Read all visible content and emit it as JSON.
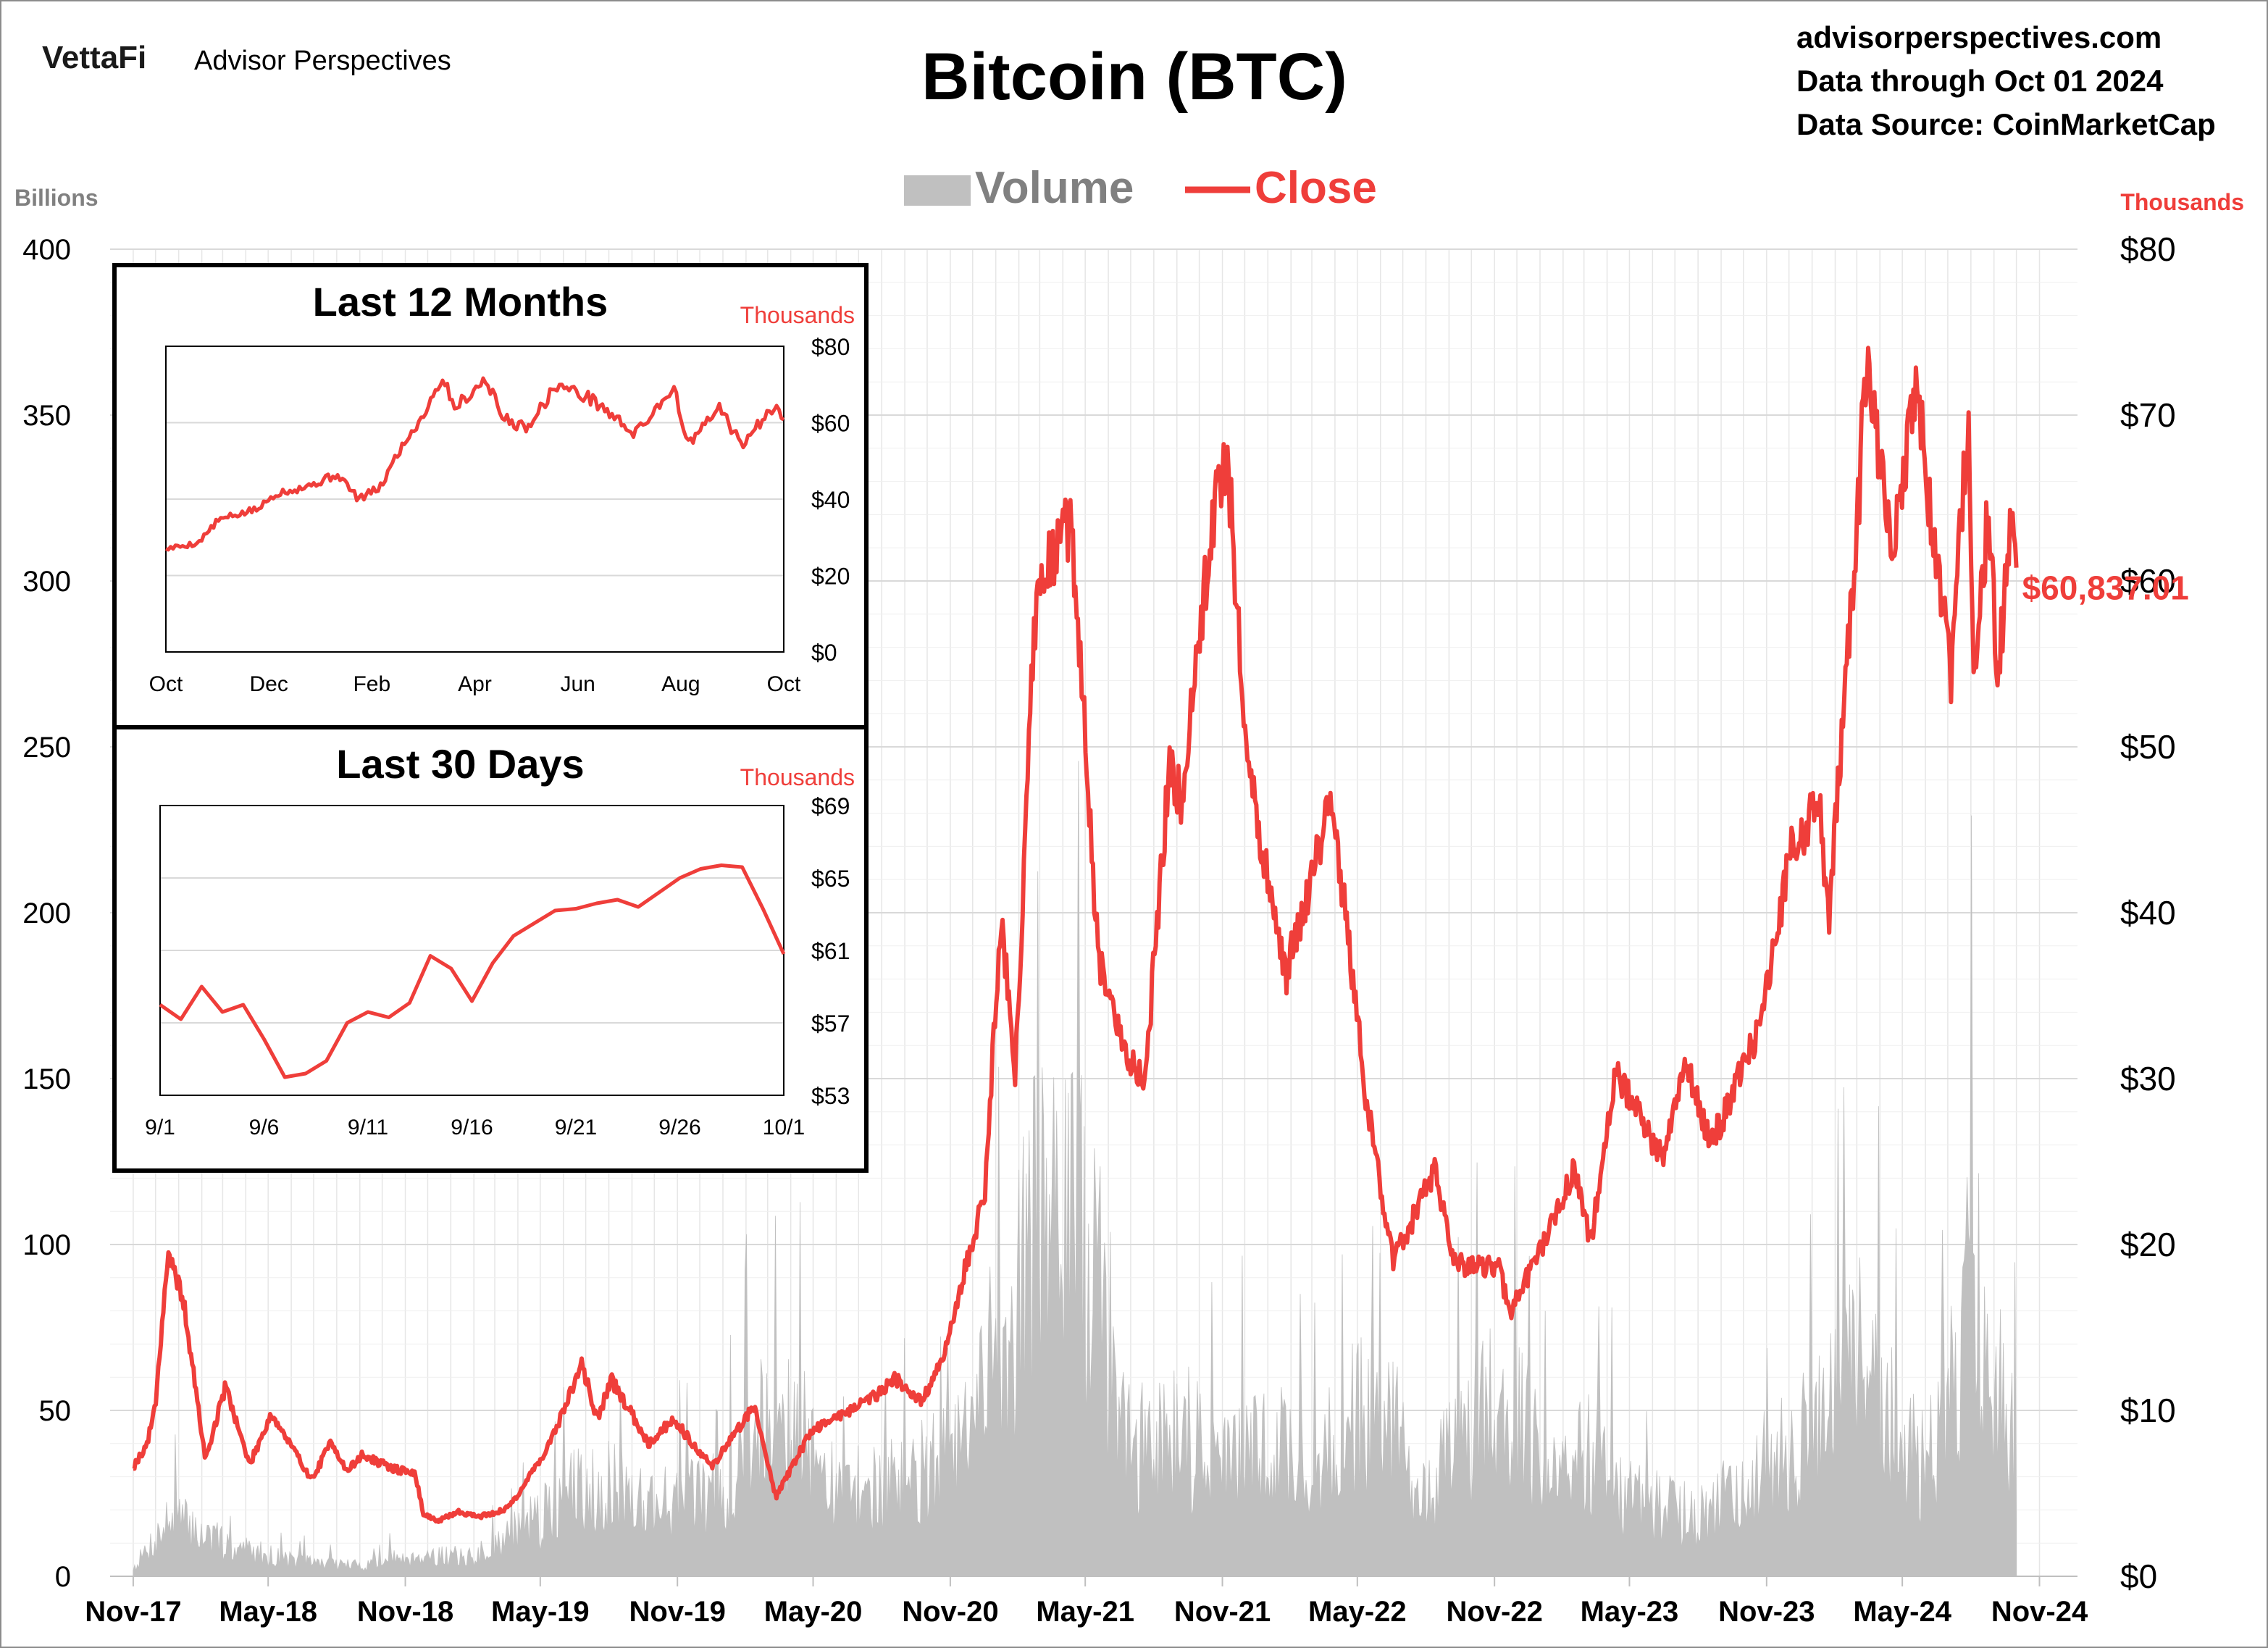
{
  "header": {
    "brand_logo": "VettaFi",
    "brand_name": "Advisor Perspectives",
    "title": "Bitcoin (BTC)",
    "source_lines": [
      "advisorperspectives.com",
      "Data through Oct 01 2024",
      "Data Source: CoinMarketCap"
    ]
  },
  "colors": {
    "close_line": "#ef3e3a",
    "volume_fill": "#c0c0c0",
    "grid": "#d9d9d9",
    "axis_text": "#000000",
    "units_left": "#808080",
    "units_right": "#ef3e3a",
    "inset_border": "#000000"
  },
  "chart_data": [
    {
      "id": "main",
      "type": "area+line",
      "legend": [
        {
          "label": "Volume",
          "kind": "area",
          "color": "#c0c0c0"
        },
        {
          "label": "Close",
          "kind": "line",
          "color": "#ef3e3a"
        }
      ],
      "legend_placement": "top-center",
      "units_left": "Billions",
      "units_right": "Thousands",
      "y_left": {
        "min": 0,
        "max": 400,
        "ticks": [
          0,
          50,
          100,
          150,
          200,
          250,
          300,
          350,
          400
        ],
        "tick_labels": [
          "0",
          "50",
          "100",
          "150",
          "200",
          "250",
          "300",
          "350",
          "400"
        ]
      },
      "y_right": {
        "min": 0,
        "max": 80,
        "ticks": [
          0,
          10,
          20,
          30,
          40,
          50,
          60,
          70,
          80
        ],
        "tick_labels": [
          "$0",
          "$10",
          "$20",
          "$30",
          "$40",
          "$50",
          "$60",
          "$70",
          "$80"
        ]
      },
      "x_ticks": [
        "Nov-17",
        "May-18",
        "Nov-18",
        "May-19",
        "Nov-19",
        "May-20",
        "Nov-20",
        "May-21",
        "Nov-21",
        "May-22",
        "Nov-22",
        "May-23",
        "Nov-23",
        "May-24",
        "Nov-24"
      ],
      "grid": "vertical+horizontal",
      "last_value_label": "$60,837.01",
      "close_series": {
        "name": "Close",
        "x": [
          "2017-11-01",
          "2017-11-20",
          "2017-12-01",
          "2017-12-17",
          "2018-01-06",
          "2018-02-06",
          "2018-03-05",
          "2018-04-06",
          "2018-05-05",
          "2018-06-29",
          "2018-07-25",
          "2018-08-14",
          "2018-09-04",
          "2018-10-15",
          "2018-11-14",
          "2018-11-25",
          "2018-12-15",
          "2019-01-10",
          "2019-02-08",
          "2019-03-15",
          "2019-04-02",
          "2019-05-14",
          "2019-06-26",
          "2019-07-16",
          "2019-08-05",
          "2019-09-24",
          "2019-10-26",
          "2019-12-17",
          "2020-02-12",
          "2020-03-12",
          "2020-04-29",
          "2020-06-01",
          "2020-07-27",
          "2020-08-17",
          "2020-09-23",
          "2020-10-21",
          "2020-11-18",
          "2020-12-17",
          "2021-01-08",
          "2021-01-27",
          "2021-02-21",
          "2021-03-13",
          "2021-04-13",
          "2021-05-19",
          "2021-06-22",
          "2021-07-20",
          "2021-08-22",
          "2021-09-07",
          "2021-10-20",
          "2021-11-08",
          "2021-12-04",
          "2022-01-24",
          "2022-03-28",
          "2022-05-12",
          "2022-06-18",
          "2022-08-14",
          "2022-09-07",
          "2022-11-08",
          "2022-11-21",
          "2023-01-14",
          "2023-02-16",
          "2023-03-10",
          "2023-04-13",
          "2023-06-15",
          "2023-07-13",
          "2023-08-18",
          "2023-10-23",
          "2023-12-05",
          "2024-01-11",
          "2024-01-23",
          "2024-02-29",
          "2024-03-13",
          "2024-04-17",
          "2024-05-20",
          "2024-07-05",
          "2024-07-29",
          "2024-08-05",
          "2024-08-24",
          "2024-09-06",
          "2024-09-27",
          "2024-10-01"
        ],
        "y": [
          6.6,
          8.0,
          10.5,
          19.2,
          17.0,
          7.0,
          11.5,
          6.7,
          9.8,
          5.8,
          8.2,
          6.3,
          7.3,
          6.5,
          6.2,
          3.8,
          3.3,
          3.9,
          3.6,
          4.0,
          5.0,
          8.0,
          12.8,
          9.5,
          11.8,
          8.0,
          9.5,
          6.6,
          10.3,
          4.8,
          8.8,
          9.6,
          11.0,
          12.0,
          10.5,
          12.9,
          18.0,
          23.0,
          40.0,
          30.0,
          57.0,
          61.0,
          63.5,
          37.0,
          31.7,
          29.8,
          49.0,
          46.8,
          64.3,
          67.5,
          49.0,
          36.0,
          47.0,
          29.0,
          19.0,
          24.5,
          18.8,
          18.6,
          15.8,
          20.9,
          24.5,
          20.2,
          30.4,
          25.1,
          31.3,
          26.0,
          33.0,
          44.0,
          46.6,
          39.5,
          62.0,
          73.1,
          61.3,
          71.4,
          54.0,
          70.0,
          54.0,
          64.0,
          53.9,
          65.0,
          60.8
        ]
      },
      "volume_series": {
        "name": "Volume",
        "x": [
          "2017-11-01",
          "2017-12-22",
          "2018-03-01",
          "2018-06-01",
          "2018-09-01",
          "2018-11-15",
          "2019-02-01",
          "2019-05-15",
          "2019-07-01",
          "2019-10-01",
          "2020-01-01",
          "2020-03-12",
          "2020-06-01",
          "2020-09-01",
          "2020-11-15",
          "2021-01-11",
          "2021-02-23",
          "2021-04-18",
          "2021-05-19",
          "2021-07-01",
          "2021-09-07",
          "2021-11-01",
          "2022-01-22",
          "2022-03-01",
          "2022-05-12",
          "2022-06-18",
          "2022-08-01",
          "2022-11-09",
          "2023-01-15",
          "2023-03-13",
          "2023-05-01",
          "2023-08-01",
          "2023-10-24",
          "2024-01-11",
          "2024-03-05",
          "2024-04-13",
          "2024-06-01",
          "2024-08-05",
          "2024-10-01"
        ],
        "y": [
          3,
          22,
          12,
          6,
          4,
          8,
          7,
          24,
          35,
          28,
          30,
          68,
          30,
          35,
          45,
          90,
          125,
          130,
          108,
          45,
          55,
          42,
          48,
          38,
          62,
          55,
          30,
          72,
          35,
          48,
          28,
          22,
          40,
          55,
          80,
          60,
          38,
          108,
          45
        ]
      }
    },
    {
      "id": "inset-12m",
      "type": "line",
      "title": "Last 12 Months",
      "units": "Thousands",
      "y": {
        "min": 0,
        "max": 80,
        "ticks": [
          0,
          20,
          40,
          60,
          80
        ],
        "tick_labels": [
          "$0",
          "$20",
          "$40",
          "$60",
          "$80"
        ]
      },
      "x_ticks": [
        "Oct",
        "Dec",
        "Feb",
        "Apr",
        "Jun",
        "Aug",
        "Oct"
      ],
      "close_series": {
        "x": [
          "2023-10-01",
          "2023-10-20",
          "2023-11-01",
          "2023-11-25",
          "2023-12-05",
          "2023-12-25",
          "2024-01-11",
          "2024-01-23",
          "2024-02-05",
          "2024-02-15",
          "2024-02-29",
          "2024-03-13",
          "2024-03-20",
          "2024-04-08",
          "2024-04-17",
          "2024-05-01",
          "2024-05-20",
          "2024-06-10",
          "2024-07-05",
          "2024-07-28",
          "2024-08-05",
          "2024-08-24",
          "2024-09-06",
          "2024-09-27",
          "2024-10-01"
        ],
        "y": [
          27.0,
          28.5,
          34.5,
          37.5,
          41.5,
          43.5,
          46.5,
          40.0,
          43.0,
          51.8,
          61.0,
          72.0,
          64.0,
          71.5,
          61.5,
          58.5,
          70.0,
          66.0,
          57.0,
          69.5,
          54.0,
          64.0,
          54.0,
          65.5,
          60.8
        ]
      }
    },
    {
      "id": "inset-30d",
      "type": "line",
      "title": "Last 30 Days",
      "units": "Thousands",
      "y": {
        "min": 53,
        "max": 69,
        "ticks": [
          53,
          57,
          61,
          65,
          69
        ],
        "tick_labels": [
          "$53",
          "$57",
          "$61",
          "$65",
          "$69"
        ]
      },
      "x_ticks": [
        "9/1",
        "9/6",
        "9/11",
        "9/16",
        "9/21",
        "9/26",
        "10/1"
      ],
      "close_series": {
        "x": [
          "9/1",
          "9/2",
          "9/3",
          "9/4",
          "9/5",
          "9/6",
          "9/7",
          "9/8",
          "9/9",
          "9/10",
          "9/11",
          "9/12",
          "9/13",
          "9/14",
          "9/15",
          "9/16",
          "9/17",
          "9/18",
          "9/19",
          "9/20",
          "9/21",
          "9/22",
          "9/23",
          "9/24",
          "9/25",
          "9/26",
          "9/27",
          "9/28",
          "9/29",
          "9/30",
          "10/1"
        ],
        "y": [
          58.0,
          57.2,
          59.0,
          57.6,
          58.0,
          56.1,
          54.0,
          54.2,
          54.9,
          57.0,
          57.6,
          57.3,
          58.1,
          60.7,
          60.0,
          58.2,
          60.3,
          61.8,
          62.5,
          63.2,
          63.3,
          63.6,
          63.8,
          63.4,
          64.2,
          65.0,
          65.5,
          65.7,
          65.6,
          63.3,
          60.8
        ]
      }
    }
  ]
}
